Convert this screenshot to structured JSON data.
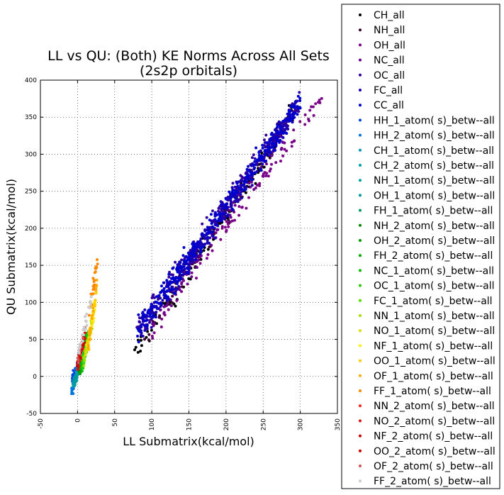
{
  "chart_data": {
    "type": "scatter",
    "title_line1": "LL vs QU: (Both) KE Norms Across All Sets",
    "title_line2": "(2s2p orbitals)",
    "xlabel": "LL Submatrix(kcal/mol)",
    "ylabel": "QU Submatrix(kcal/mol)",
    "xlim": [
      -50,
      350
    ],
    "ylim": [
      -50,
      400
    ],
    "xticks": [
      "-50",
      "0",
      "50",
      "100",
      "150",
      "200",
      "250",
      "300",
      "350"
    ],
    "yticks": [
      "-50",
      "0",
      "50",
      "100",
      "150",
      "200",
      "250",
      "300",
      "350",
      "400"
    ],
    "grid": true,
    "legend_position": "outside-right",
    "series": [
      {
        "name": "CH_all",
        "color": "#000000",
        "x_range": [
          76,
          290
        ],
        "noise": 8,
        "y_at_x_lo": 28,
        "y_at_x_hi": 355,
        "count": 140
      },
      {
        "name": "NH_all",
        "color": "#3d0033",
        "x_range": [
          90,
          275
        ],
        "noise": 7,
        "y_at_x_lo": 55,
        "y_at_x_hi": 335,
        "count": 70
      },
      {
        "name": "OH_all",
        "color": "#7a008a",
        "x_range": [
          100,
          330
        ],
        "noise": 7,
        "y_at_x_lo": 65,
        "y_at_x_hi": 377,
        "count": 90
      },
      {
        "name": "NC_all",
        "color": "#6a0090",
        "x_range": [
          95,
          285
        ],
        "noise": 7,
        "y_at_x_lo": 60,
        "y_at_x_hi": 340,
        "count": 70
      },
      {
        "name": "OC_all",
        "color": "#3300a0",
        "x_range": [
          80,
          300
        ],
        "noise": 8,
        "y_at_x_lo": 62,
        "y_at_x_hi": 372,
        "count": 260
      },
      {
        "name": "FC_all",
        "color": "#1a00b0",
        "x_range": [
          85,
          290
        ],
        "noise": 8,
        "y_at_x_lo": 62,
        "y_at_x_hi": 355,
        "count": 260
      },
      {
        "name": "CC_all",
        "color": "#0000cc",
        "x_range": [
          80,
          300
        ],
        "noise": 8,
        "y_at_x_lo": 62,
        "y_at_x_hi": 370,
        "count": 320
      },
      {
        "name": "HH_1_atom( s)_betw--all",
        "color": "#0044dd",
        "x_range": [
          -7,
          0
        ],
        "noise": 4,
        "y_at_x_lo": -5,
        "y_at_x_hi": 12,
        "count": 30
      },
      {
        "name": "HH_2_atom( s)_betw--all",
        "color": "#0077dd",
        "x_range": [
          -8,
          -1
        ],
        "noise": 4,
        "y_at_x_lo": -22,
        "y_at_x_hi": 8,
        "count": 30
      },
      {
        "name": "CH_1_atom( s)_betw--all",
        "color": "#0099bb",
        "x_range": [
          -6,
          1
        ],
        "noise": 3,
        "y_at_x_lo": -10,
        "y_at_x_hi": 5,
        "count": 15
      },
      {
        "name": "CH_2_atom( s)_betw--all",
        "color": "#00a0aa",
        "x_range": [
          -6,
          1
        ],
        "noise": 3,
        "y_at_x_lo": -12,
        "y_at_x_hi": 4,
        "count": 15
      },
      {
        "name": "NH_1_atom( s)_betw--all",
        "color": "#00a0a0",
        "x_range": [
          -5,
          1
        ],
        "noise": 3,
        "y_at_x_lo": -8,
        "y_at_x_hi": 6,
        "count": 12
      },
      {
        "name": "OH_1_atom( s)_betw--all",
        "color": "#009999",
        "x_range": [
          -5,
          1
        ],
        "noise": 3,
        "y_at_x_lo": -6,
        "y_at_x_hi": 8,
        "count": 12
      },
      {
        "name": "FH_1_atom( s)_betw--all",
        "color": "#009966",
        "x_range": [
          1,
          10
        ],
        "noise": 4,
        "y_at_x_lo": 5,
        "y_at_x_hi": 35,
        "count": 15
      },
      {
        "name": "NH_2_atom( s)_betw--all",
        "color": "#008800",
        "x_range": [
          2,
          12
        ],
        "noise": 5,
        "y_at_x_lo": 4,
        "y_at_x_hi": 50,
        "count": 20
      },
      {
        "name": "OH_2_atom( s)_betw--all",
        "color": "#009900",
        "x_range": [
          3,
          13
        ],
        "noise": 5,
        "y_at_x_lo": 5,
        "y_at_x_hi": 55,
        "count": 20
      },
      {
        "name": "FH_2_atom( s)_betw--all",
        "color": "#00aa00",
        "x_range": [
          3,
          14
        ],
        "noise": 5,
        "y_at_x_lo": 5,
        "y_at_x_hi": 60,
        "count": 25
      },
      {
        "name": "NC_1_atom( s)_betw--all",
        "color": "#00bb00",
        "x_range": [
          5,
          15
        ],
        "noise": 5,
        "y_at_x_lo": 10,
        "y_at_x_hi": 60,
        "count": 25
      },
      {
        "name": "OC_1_atom( s)_betw--all",
        "color": "#22cc00",
        "x_range": [
          6,
          17
        ],
        "noise": 5,
        "y_at_x_lo": 12,
        "y_at_x_hi": 62,
        "count": 25
      },
      {
        "name": "FC_1_atom( s)_betw--all",
        "color": "#55dd00",
        "x_range": [
          7,
          18
        ],
        "noise": 5,
        "y_at_x_lo": 15,
        "y_at_x_hi": 65,
        "count": 25
      },
      {
        "name": "NN_1_atom( s)_betw--all",
        "color": "#aadd00",
        "x_range": [
          8,
          20
        ],
        "noise": 5,
        "y_at_x_lo": 20,
        "y_at_x_hi": 70,
        "count": 20
      },
      {
        "name": "NO_1_atom( s)_betw--all",
        "color": "#dddd00",
        "x_range": [
          10,
          22
        ],
        "noise": 5,
        "y_at_x_lo": 25,
        "y_at_x_hi": 85,
        "count": 20
      },
      {
        "name": "NF_1_atom( s)_betw--all",
        "color": "#ffee00",
        "x_range": [
          12,
          24
        ],
        "noise": 5,
        "y_at_x_lo": 30,
        "y_at_x_hi": 100,
        "count": 20
      },
      {
        "name": "OO_1_atom( s)_betw--all",
        "color": "#ffcc00",
        "x_range": [
          13,
          25
        ],
        "noise": 5,
        "y_at_x_lo": 35,
        "y_at_x_hi": 110,
        "count": 20
      },
      {
        "name": "OF_1_atom( s)_betw--all",
        "color": "#ffaa00",
        "x_range": [
          14,
          26
        ],
        "noise": 5,
        "y_at_x_lo": 40,
        "y_at_x_hi": 130,
        "count": 20
      },
      {
        "name": "FF_1_atom( s)_betw--all",
        "color": "#ff8800",
        "x_range": [
          15,
          27
        ],
        "noise": 5,
        "y_at_x_lo": 80,
        "y_at_x_hi": 157,
        "count": 25
      },
      {
        "name": "NN_2_atom( s)_betw--all",
        "color": "#ff2222",
        "x_range": [
          0,
          10
        ],
        "noise": 4,
        "y_at_x_lo": 10,
        "y_at_x_hi": 55,
        "count": 15
      },
      {
        "name": "NO_2_atom( s)_betw--all",
        "color": "#dd1111",
        "x_range": [
          0,
          10
        ],
        "noise": 4,
        "y_at_x_lo": 10,
        "y_at_x_hi": 55,
        "count": 15
      },
      {
        "name": "NF_2_atom( s)_betw--all",
        "color": "#cc0000",
        "x_range": [
          0,
          10
        ],
        "noise": 4,
        "y_at_x_lo": 15,
        "y_at_x_hi": 58,
        "count": 15
      },
      {
        "name": "OO_2_atom( s)_betw--all",
        "color": "#cc0000",
        "x_range": [
          0,
          10
        ],
        "noise": 4,
        "y_at_x_lo": 15,
        "y_at_x_hi": 60,
        "count": 15
      },
      {
        "name": "OF_2_atom( s)_betw--all",
        "color": "#cc5555",
        "x_range": [
          0,
          8
        ],
        "noise": 4,
        "y_at_x_lo": 20,
        "y_at_x_hi": 55,
        "count": 10
      },
      {
        "name": "FF_2_atom( s)_betw--all",
        "color": "#cccccc",
        "x_range": [
          0,
          20
        ],
        "noise": 5,
        "y_at_x_lo": 30,
        "y_at_x_hi": 110,
        "count": 25
      }
    ]
  }
}
